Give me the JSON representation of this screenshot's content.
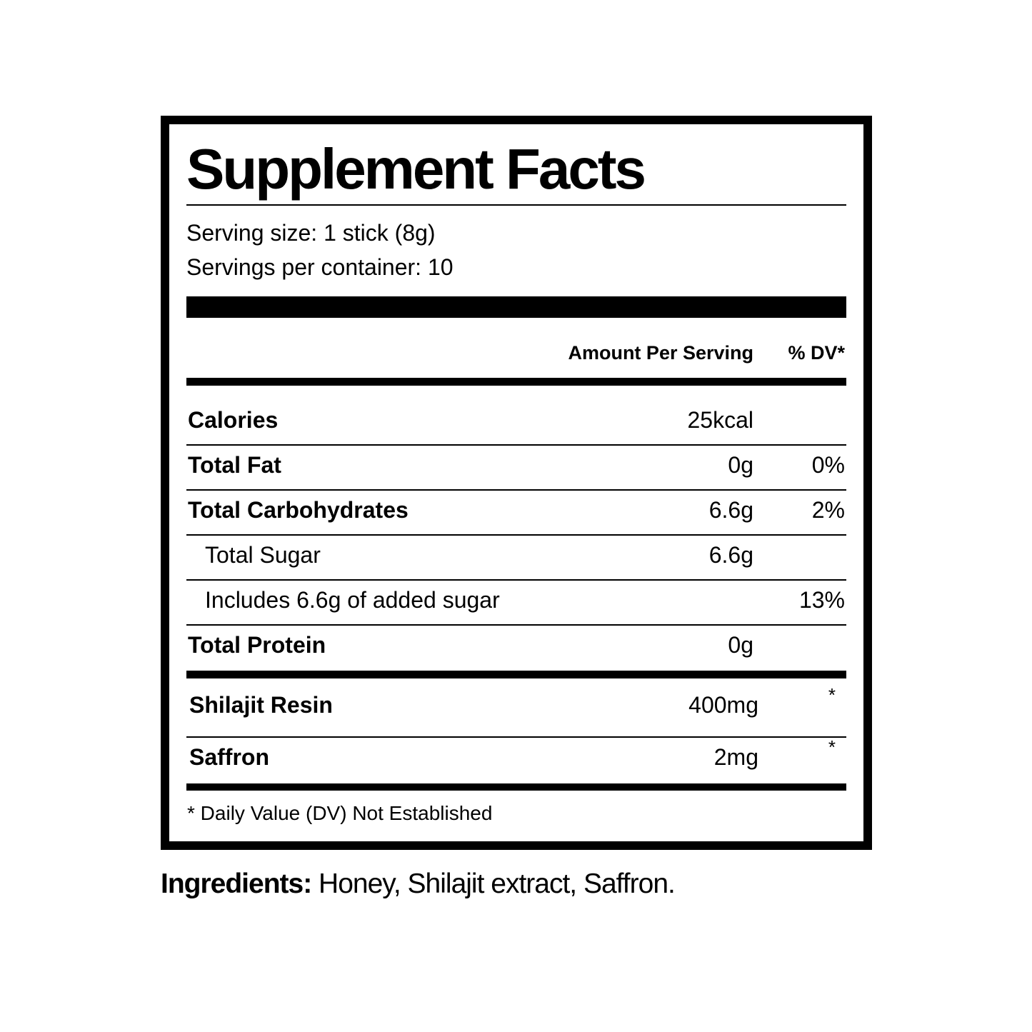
{
  "title": "Supplement Facts",
  "serving_size": "Serving size: 1 stick (8g)",
  "servings_per_container": "Servings per container: 10",
  "header": {
    "amount": "Amount Per Serving",
    "dv": "% DV*"
  },
  "nutrients": [
    {
      "name": "Calories",
      "amount": "25kcal",
      "dv": ""
    },
    {
      "name": "Total Fat",
      "amount": "0g",
      "dv": "0%"
    },
    {
      "name": "Total Carbohydrates",
      "amount": "6.6g",
      "dv": "2%"
    },
    {
      "name": "Total Sugar",
      "amount": "6.6g",
      "dv": ""
    },
    {
      "name": "Includes 6.6g of added sugar",
      "amount": "",
      "dv": "13%"
    },
    {
      "name": "Total Protein",
      "amount": "0g",
      "dv": ""
    }
  ],
  "actives": [
    {
      "name": "Shilajit Resin",
      "amount": "400mg",
      "dv": "*"
    },
    {
      "name": "Saffron",
      "amount": "2mg",
      "dv": "*"
    }
  ],
  "footnote": "* Daily Value (DV) Not Established",
  "ingredients": {
    "label": "Ingredients:",
    "text": "Honey, Shilajit extract, Saffron."
  }
}
